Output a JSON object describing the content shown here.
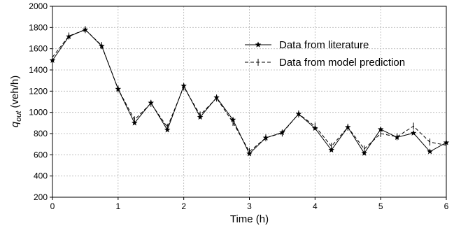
{
  "chart_data": {
    "type": "line",
    "title": "",
    "xlabel": "Time (h)",
    "ylabel_main": "q",
    "ylabel_sub": "out",
    "ylabel_unit": " (veh/h)",
    "xlim": [
      0,
      6
    ],
    "ylim": [
      200,
      2000
    ],
    "xticks": [
      "0",
      "1",
      "2",
      "3",
      "4",
      "5",
      "6"
    ],
    "yticks": [
      "200",
      "400",
      "600",
      "800",
      "1000",
      "1200",
      "1400",
      "1600",
      "1800",
      "2000"
    ],
    "grid": true,
    "legend_position": "upper-right",
    "x": [
      0,
      0.25,
      0.5,
      0.75,
      1,
      1.25,
      1.5,
      1.75,
      2,
      2.25,
      2.5,
      2.75,
      3,
      3.25,
      3.5,
      3.75,
      4,
      4.25,
      4.5,
      4.75,
      5,
      5.25,
      5.5,
      5.75,
      6
    ],
    "series": [
      {
        "name": "Data from literature",
        "style": "solid",
        "marker": "star",
        "color": "#000000",
        "values": [
          1490,
          1715,
          1780,
          1625,
          1220,
          900,
          1090,
          835,
          1250,
          955,
          1140,
          930,
          610,
          760,
          810,
          985,
          850,
          645,
          860,
          615,
          840,
          765,
          805,
          630,
          715
        ]
      },
      {
        "name": "Data from model prediction",
        "style": "dashed",
        "marker": "tick",
        "color": "#000000",
        "values": [
          1520,
          1720,
          1780,
          1630,
          1220,
          930,
          1085,
          860,
          1240,
          975,
          1135,
          905,
          630,
          760,
          805,
          985,
          870,
          680,
          860,
          655,
          800,
          770,
          870,
          720,
          690
        ]
      }
    ]
  }
}
